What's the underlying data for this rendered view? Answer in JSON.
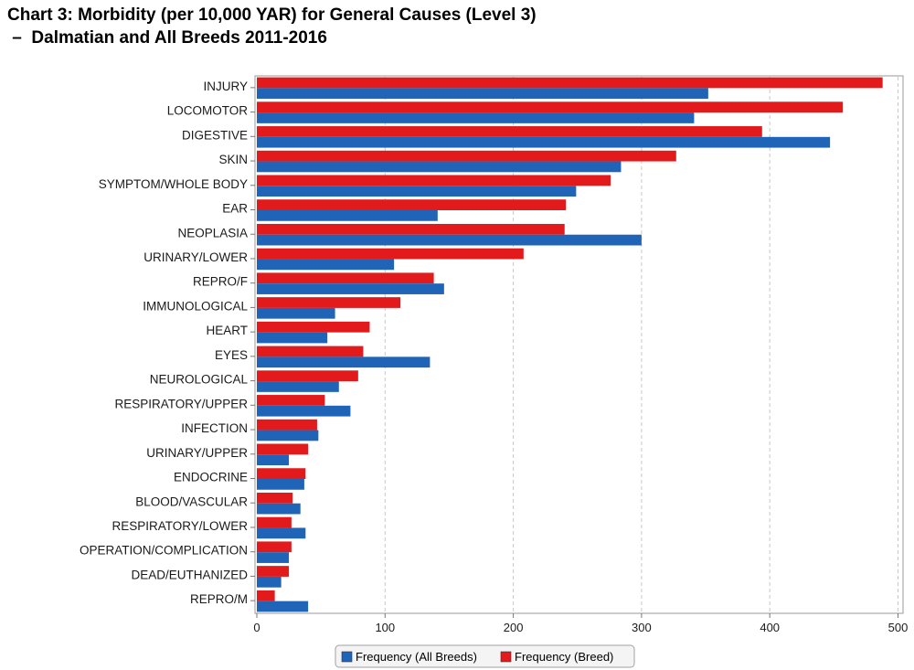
{
  "title": {
    "line1": "Chart 3: Morbidity (per 10,000 YAR) for General Causes (Level 3)",
    "line2": " –  Dalmatian and All Breeds 2011-2016"
  },
  "chart_data": {
    "type": "bar",
    "orientation": "horizontal",
    "title": "Chart 3: Morbidity (per 10,000 YAR) for General Causes (Level 3) – Dalmatian and All Breeds 2011-2016",
    "xlabel": "",
    "ylabel": "",
    "xlim": [
      0,
      505
    ],
    "xticks": [
      0,
      100,
      200,
      300,
      400,
      500
    ],
    "grid": "vertical dashed",
    "legend_position": "bottom-center",
    "categories": [
      "INJURY",
      "LOCOMOTOR",
      "DIGESTIVE",
      "SKIN",
      "SYMPTOM/WHOLE BODY",
      "EAR",
      "NEOPLASIA",
      "URINARY/LOWER",
      "REPRO/F",
      "IMMUNOLOGICAL",
      "HEART",
      "EYES",
      "NEUROLOGICAL",
      "RESPIRATORY/UPPER",
      "INFECTION",
      "URINARY/UPPER",
      "ENDOCRINE",
      "BLOOD/VASCULAR",
      "RESPIRATORY/LOWER",
      "OPERATION/COMPLICATION",
      "DEAD/EUTHANIZED",
      "REPRO/M"
    ],
    "series": [
      {
        "name": "Frequency (Breed)",
        "color": "#e31a1c",
        "values": [
          488,
          457,
          394,
          327,
          276,
          241,
          240,
          208,
          138,
          112,
          88,
          83,
          79,
          53,
          47,
          40,
          38,
          28,
          27,
          27,
          25,
          14
        ]
      },
      {
        "name": "Frequency (All Breeds)",
        "color": "#2064b8",
        "values": [
          352,
          341,
          447,
          284,
          249,
          141,
          300,
          107,
          146,
          61,
          55,
          135,
          64,
          73,
          48,
          25,
          37,
          34,
          38,
          25,
          19,
          40
        ]
      }
    ],
    "legend": [
      "Frequency (All Breeds)",
      "Frequency (Breed)"
    ]
  }
}
